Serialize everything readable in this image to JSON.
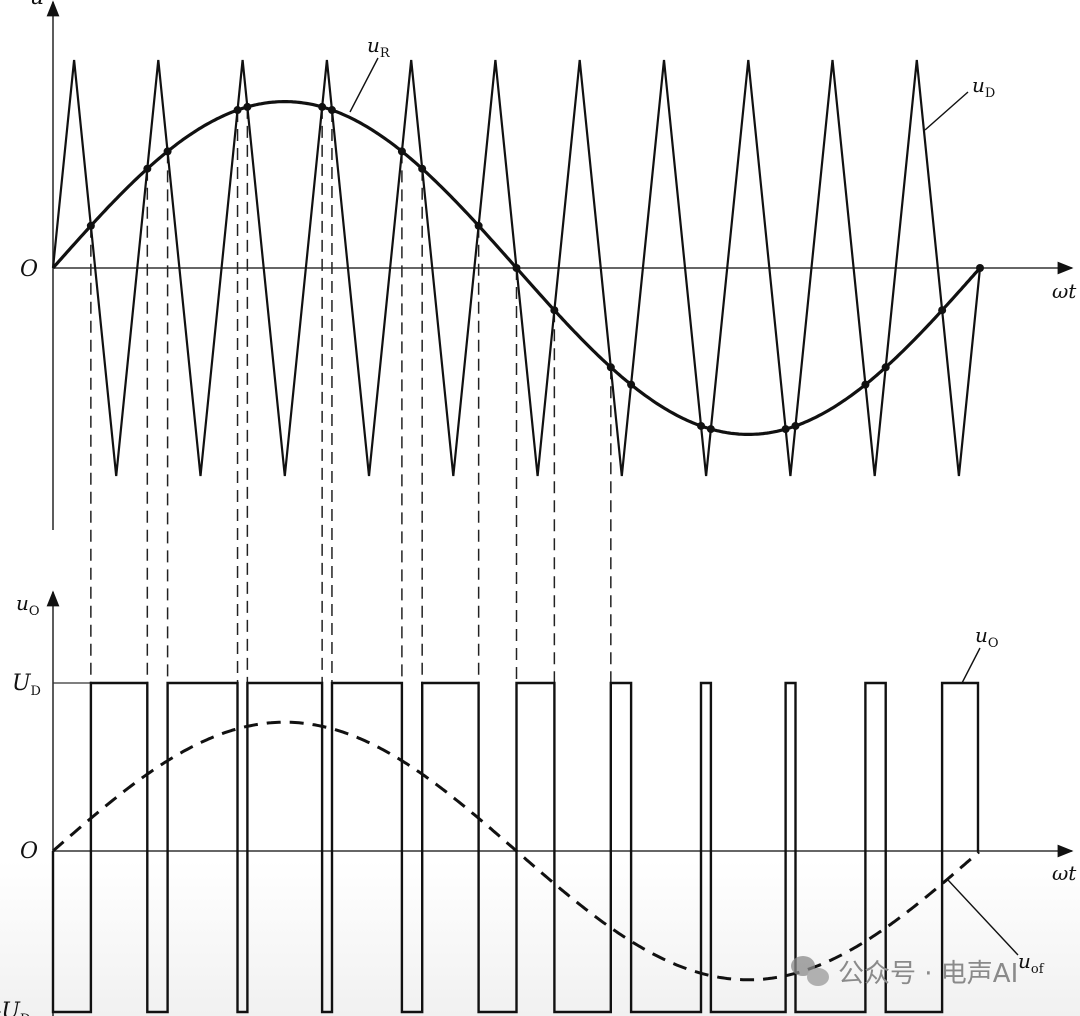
{
  "top_plot": {
    "y_axis_label": "u",
    "origin_label": "O",
    "x_axis_label": "ωt",
    "reference_label": {
      "main": "u",
      "sub": "R"
    },
    "carrier_label": {
      "main": "u",
      "sub": "D"
    }
  },
  "bottom_plot": {
    "y_axis_label": {
      "main": "u",
      "sub": "O"
    },
    "origin_label": "O",
    "x_axis_label": "ωt",
    "high_level_label": {
      "main": "U",
      "sub": "D"
    },
    "low_level_label": {
      "main": "-U",
      "sub": "D"
    },
    "output_label": {
      "main": "u",
      "sub": "O"
    },
    "fundamental_label": {
      "main": "u",
      "sub": "of"
    }
  },
  "signal": {
    "carrier_cycles_per_period": 11,
    "modulation_index": 0.8,
    "output_fundamental_ratio": 0.8
  },
  "watermark": {
    "text": "公众号 · 电声AI"
  },
  "colors": {
    "line": "#111111",
    "watermark": "#8a8a8a"
  }
}
